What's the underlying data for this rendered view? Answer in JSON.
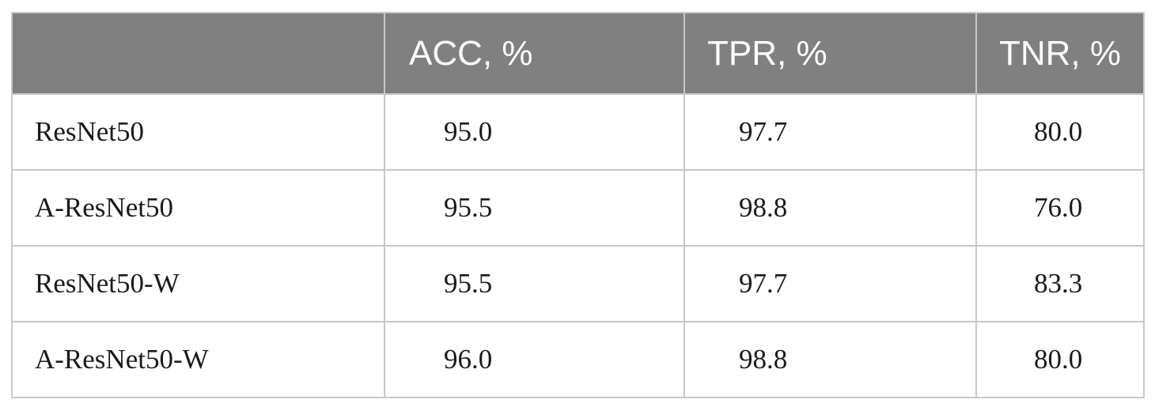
{
  "table": {
    "headers": [
      "",
      "ACC, %",
      "TPR, %",
      "TNR, %"
    ],
    "rows": [
      {
        "model": "ResNet50",
        "acc": "95.0",
        "tpr": "97.7",
        "tnr": "80.0"
      },
      {
        "model": "A-ResNet50",
        "acc": "95.5",
        "tpr": "98.8",
        "tnr": "76.0"
      },
      {
        "model": "ResNet50-W",
        "acc": "95.5",
        "tpr": "97.7",
        "tnr": "83.3"
      },
      {
        "model": "A-ResNet50-W",
        "acc": "96.0",
        "tpr": "98.8",
        "tnr": "80.0"
      }
    ]
  },
  "colors": {
    "header_bg": "#808080",
    "header_text": "#ffffff",
    "grid": "#c8c8c8",
    "body_text": "#1a1a1a"
  }
}
